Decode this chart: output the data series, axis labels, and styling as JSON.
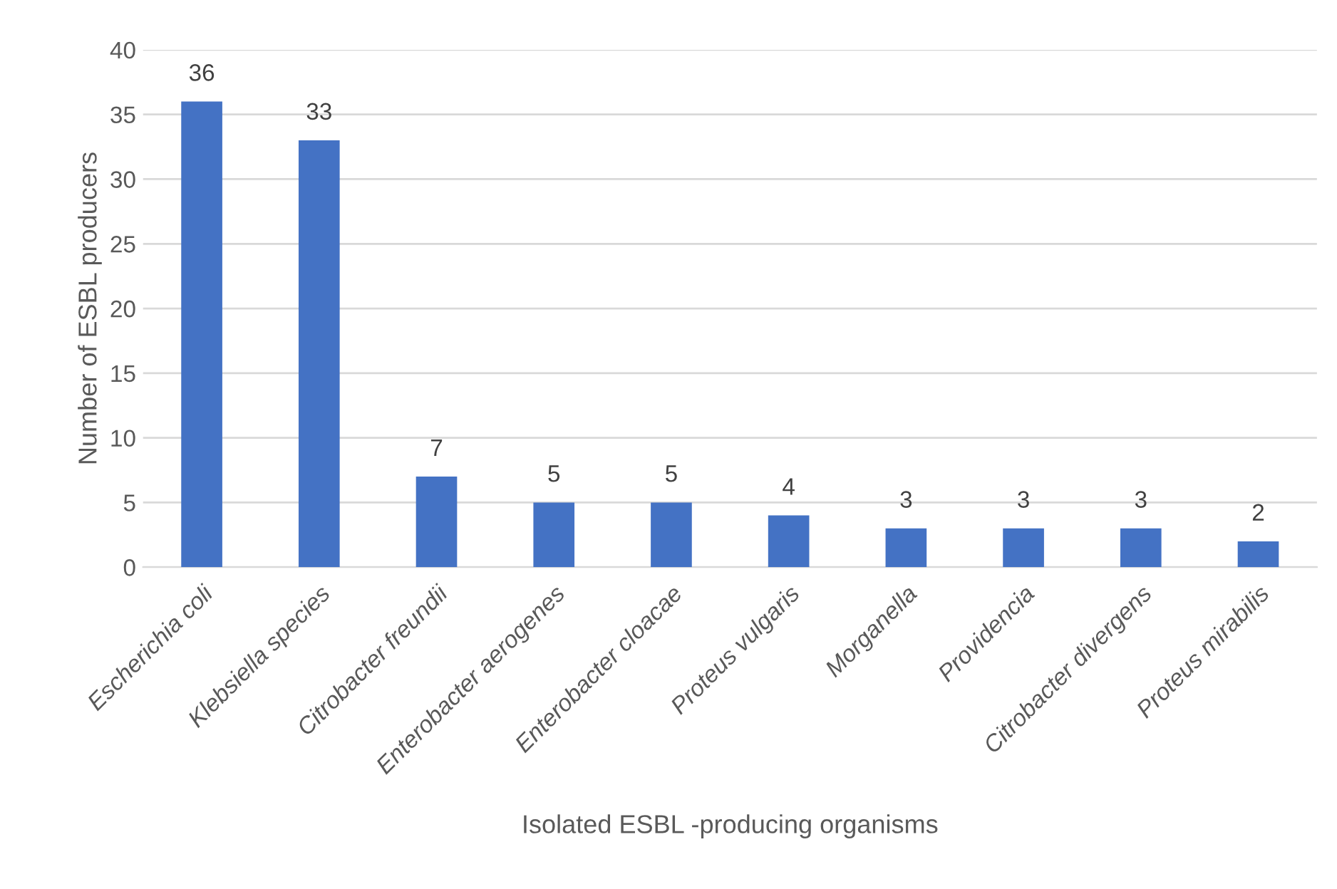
{
  "chart_data": {
    "type": "bar",
    "xlabel": "Isolated ESBL -producing organisms",
    "ylabel": "Number of ESBL producers",
    "categories": [
      "Escherichia coli",
      "Klebsiella species",
      "Citrobacter freundii",
      "Enterobacter aerogenes",
      "Enterobacter cloacae",
      "Proteus vulgaris",
      "Morganella",
      "Providencia",
      "Citrobacter divergens",
      "Proteus mirabilis"
    ],
    "values": [
      36,
      33,
      7,
      5,
      5,
      4,
      3,
      3,
      3,
      2
    ],
    "color": "#4472c4",
    "ylim": [
      0,
      40
    ],
    "yticks": [
      0,
      5,
      10,
      15,
      20,
      25,
      30,
      35,
      40
    ],
    "grid": "y",
    "data_labels": true
  }
}
